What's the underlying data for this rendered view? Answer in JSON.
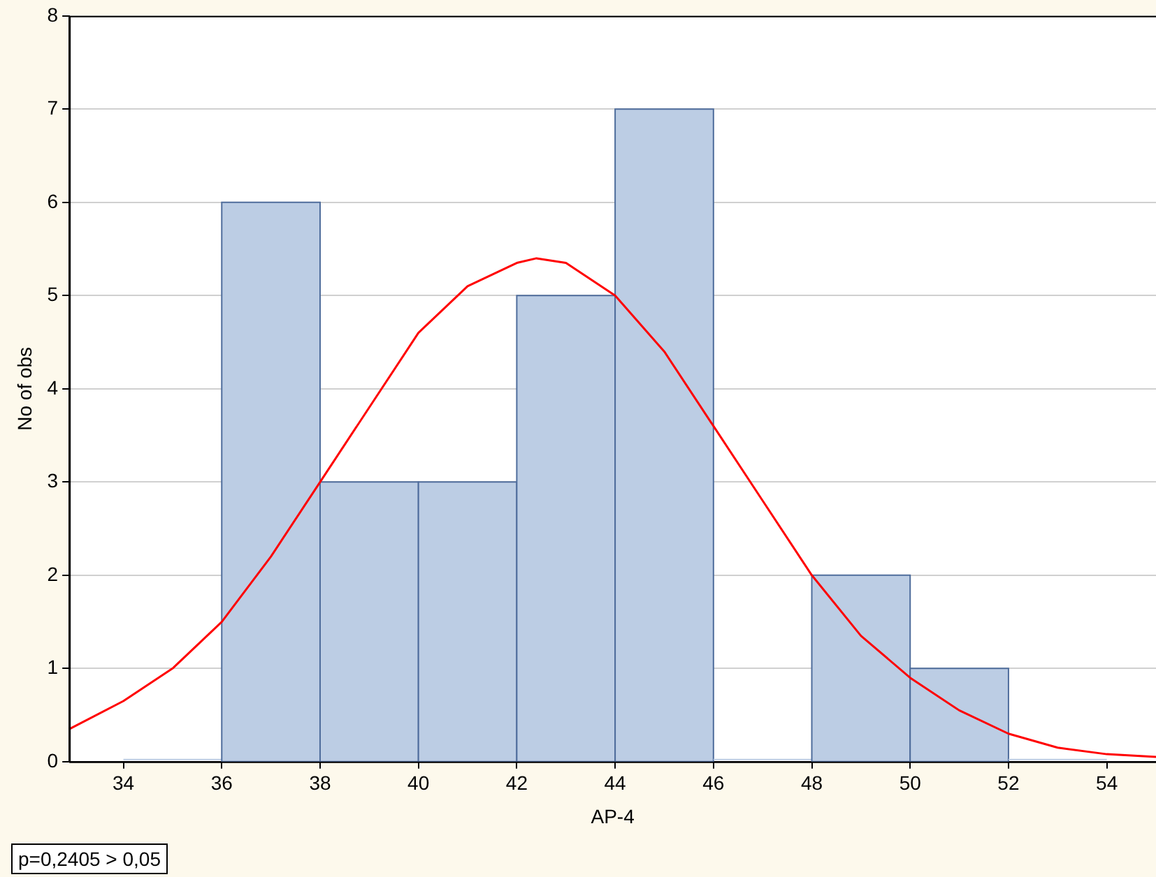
{
  "chart_data": {
    "type": "histogram",
    "xlabel": "AP-4",
    "ylabel": "No of obs",
    "bins": [
      34,
      36,
      38,
      40,
      42,
      44,
      46,
      48,
      50,
      52,
      54
    ],
    "series": [
      {
        "type": "histogram",
        "color": "#bccde4",
        "values": [
          0,
          6,
          3,
          3,
          5,
          7,
          0,
          2,
          1,
          0
        ]
      },
      {
        "type": "line",
        "color": "#ff0000",
        "x": [
          32.9,
          34,
          35,
          36,
          37,
          38,
          39,
          40,
          41,
          42,
          42.4,
          43,
          44,
          45,
          46,
          47,
          48,
          49,
          50,
          51,
          52,
          53,
          54,
          55
        ],
        "values": [
          0.35,
          0.65,
          1.0,
          1.5,
          2.2,
          3.0,
          3.8,
          4.6,
          5.1,
          5.35,
          5.4,
          5.35,
          5.0,
          4.4,
          3.6,
          2.8,
          2.0,
          1.35,
          0.9,
          0.55,
          0.3,
          0.15,
          0.08,
          0.05
        ]
      }
    ],
    "xlim": [
      32.9,
      55
    ],
    "xticks": [
      34,
      36,
      38,
      40,
      42,
      44,
      46,
      48,
      50,
      52,
      54
    ],
    "ylim": [
      0,
      8
    ],
    "yticks": [
      0,
      1,
      2,
      3,
      4,
      5,
      6,
      7,
      8
    ],
    "grid": "y",
    "legend": false,
    "marker": "none",
    "line_style": "solid",
    "annotations": [
      "p=0,2405 > 0,05"
    ]
  }
}
